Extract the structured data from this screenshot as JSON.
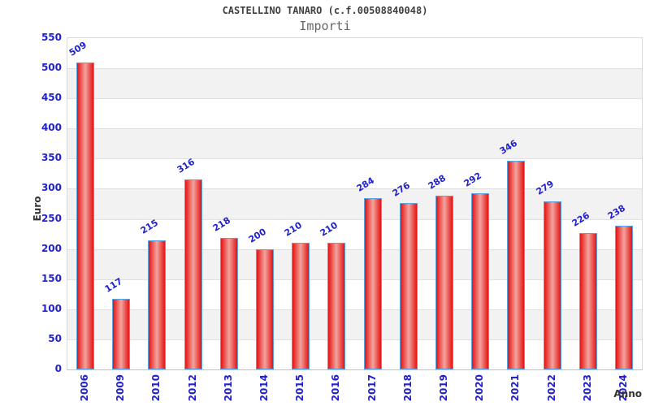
{
  "chart_data": {
    "type": "bar",
    "title": "CASTELLINO TANARO (c.f.00508840048)",
    "subtitle": "Importi",
    "xlabel": "Anno",
    "ylabel": "Euro",
    "categories": [
      "2006",
      "2009",
      "2010",
      "2012",
      "2013",
      "2014",
      "2015",
      "2016",
      "2017",
      "2018",
      "2019",
      "2020",
      "2021",
      "2022",
      "2023",
      "2024"
    ],
    "values": [
      509,
      117,
      215,
      316,
      218,
      200,
      210,
      210,
      284,
      276,
      288,
      292,
      346,
      279,
      226,
      238
    ],
    "ylim": [
      0,
      550
    ],
    "ytick_step": 50,
    "yticks": [
      0,
      50,
      100,
      150,
      200,
      250,
      300,
      350,
      400,
      450,
      500,
      550
    ],
    "grid": true,
    "legend": "none",
    "bar_value_labels_shown": true,
    "colors": {
      "tick_label": "#2222cc",
      "value_label": "#2222cc",
      "bar_edge": "#e31414",
      "bar_center": "#f3a49e",
      "bar_border": "#5ba2e0",
      "band": "#f2f2f2",
      "gridline": "#e0e0e0",
      "plot_border": "#d9d9d9",
      "axis_line": "#c0c0c0",
      "title": "#404040",
      "subtitle": "#666666",
      "axis_title": "#333333"
    }
  }
}
